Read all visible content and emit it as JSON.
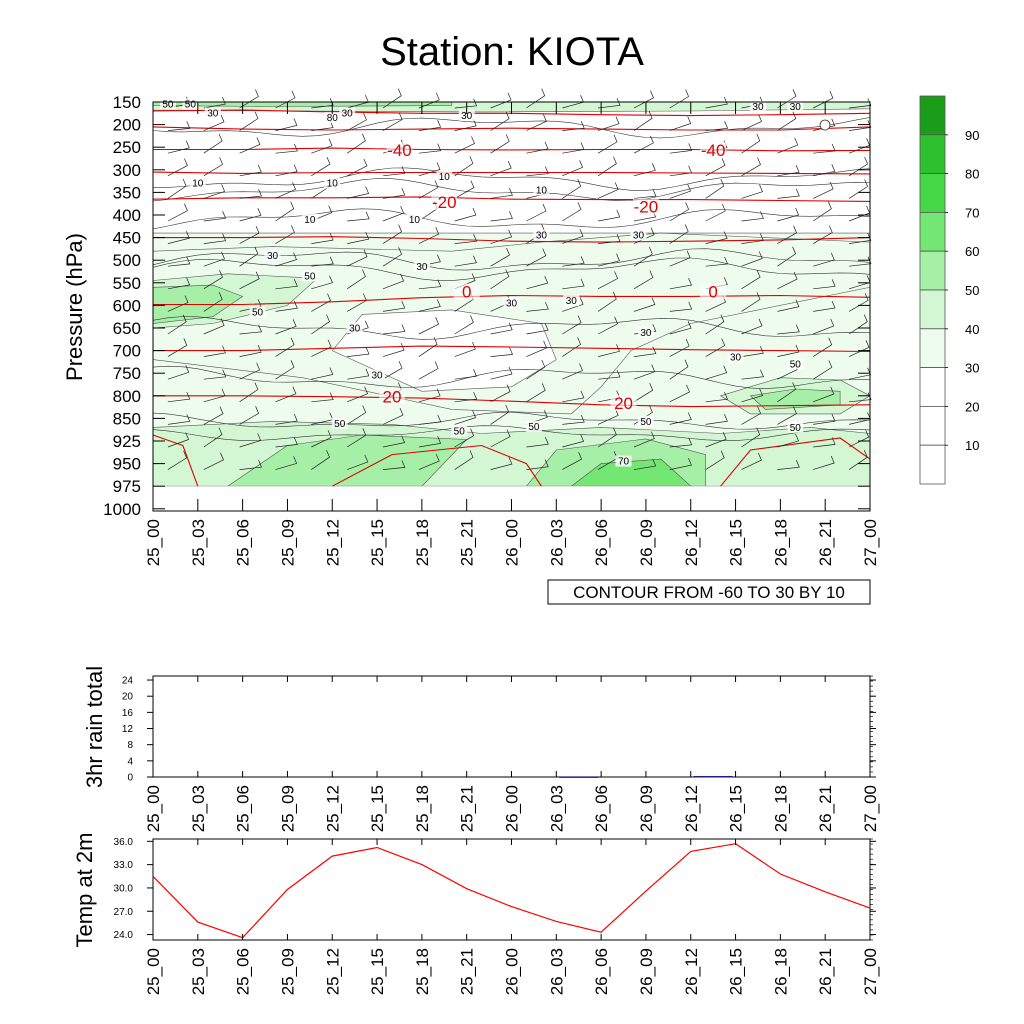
{
  "title": "Station: KIOTA",
  "chart_data": [
    {
      "type": "heatmap",
      "ylabel": "Pressure (hPa)",
      "y_ticks": [
        "150",
        "200",
        "250",
        "300",
        "350",
        "400",
        "450",
        "500",
        "550",
        "600",
        "650",
        "700",
        "750",
        "800",
        "850",
        "925",
        "950",
        "975",
        "1000"
      ],
      "x_ticks": [
        "25_00",
        "25_03",
        "25_06",
        "25_09",
        "25_12",
        "25_15",
        "25_18",
        "25_21",
        "26_00",
        "26_03",
        "26_06",
        "26_09",
        "26_12",
        "26_15",
        "26_18",
        "26_21",
        "27_00"
      ],
      "colorbar": {
        "labels": [
          "10",
          "20",
          "30",
          "40",
          "50",
          "60",
          "70",
          "80",
          "90"
        ],
        "colors": [
          "#ffffff",
          "#ffffff",
          "#ffffff",
          "#eefcee",
          "#d2f7d2",
          "#a6efa6",
          "#74e674",
          "#45d845",
          "#2ec12e",
          "#1a9e1a"
        ]
      },
      "info_label": "CONTOUR FROM -60 TO 30 BY 10",
      "humidity_contour_labels": [
        {
          "text": "50",
          "x": 1.0,
          "p": 160
        },
        {
          "text": "50",
          "x": 2.5,
          "p": 160
        },
        {
          "text": "30",
          "x": 4.0,
          "p": 180
        },
        {
          "text": "30",
          "x": 13.0,
          "p": 180
        },
        {
          "text": "80",
          "x": 12.0,
          "p": 190
        },
        {
          "text": "30",
          "x": 21.0,
          "p": 185
        },
        {
          "text": "30",
          "x": 40.5,
          "p": 165
        },
        {
          "text": "30",
          "x": 43.0,
          "p": 165
        },
        {
          "text": "10",
          "x": 3.0,
          "p": 335
        },
        {
          "text": "10",
          "x": 12.0,
          "p": 335
        },
        {
          "text": "10",
          "x": 19.5,
          "p": 320
        },
        {
          "text": "10",
          "x": 26.0,
          "p": 350
        },
        {
          "text": "10",
          "x": 10.5,
          "p": 415
        },
        {
          "text": "10",
          "x": 17.5,
          "p": 415
        },
        {
          "text": "30",
          "x": 26.0,
          "p": 450
        },
        {
          "text": "30",
          "x": 32.5,
          "p": 450
        },
        {
          "text": "30",
          "x": 8.0,
          "p": 495
        },
        {
          "text": "30",
          "x": 18.0,
          "p": 520
        },
        {
          "text": "50",
          "x": 10.5,
          "p": 540
        },
        {
          "text": "50",
          "x": 7.0,
          "p": 620
        },
        {
          "text": "30",
          "x": 24.0,
          "p": 600
        },
        {
          "text": "30",
          "x": 28.0,
          "p": 595
        },
        {
          "text": "30",
          "x": 13.5,
          "p": 655
        },
        {
          "text": "30",
          "x": 33.0,
          "p": 665
        },
        {
          "text": "30",
          "x": 39.0,
          "p": 720
        },
        {
          "text": "30",
          "x": 15.0,
          "p": 760
        },
        {
          "text": "50",
          "x": 43.0,
          "p": 735
        },
        {
          "text": "50",
          "x": 12.5,
          "p": 875
        },
        {
          "text": "50",
          "x": 20.5,
          "p": 900
        },
        {
          "text": "50",
          "x": 25.5,
          "p": 885
        },
        {
          "text": "50",
          "x": 33.0,
          "p": 868
        },
        {
          "text": "50",
          "x": 43.0,
          "p": 888
        },
        {
          "text": "70",
          "x": 31.5,
          "p": 950
        }
      ],
      "temperature_contour_labels": [
        {
          "text": "-40",
          "x": 16.5,
          "p": 265
        },
        {
          "text": "-40",
          "x": 37.5,
          "p": 265
        },
        {
          "text": "-20",
          "x": 19.5,
          "p": 380
        },
        {
          "text": "-20",
          "x": 33.0,
          "p": 390
        },
        {
          "text": "0",
          "x": 21.0,
          "p": 578
        },
        {
          "text": "0",
          "x": 37.5,
          "p": 578
        },
        {
          "text": "20",
          "x": 16.0,
          "p": 810
        },
        {
          "text": "20",
          "x": 31.5,
          "p": 825
        }
      ],
      "temperature_isotherms": [
        {
          "p": [
            170,
            168,
            172,
            175,
            175,
            178,
            180,
            178,
            175
          ]
        },
        {
          "p": [
            205,
            210,
            212,
            210,
            208,
            210,
            212,
            212,
            205
          ]
        },
        {
          "p": [
            255,
            255,
            252,
            255,
            256,
            255,
            255,
            258,
            257
          ]
        },
        {
          "p": [
            305,
            308,
            306,
            306,
            306,
            306,
            307,
            308,
            309
          ]
        },
        {
          "p": [
            365,
            362,
            362,
            360,
            365,
            366,
            366,
            368,
            370
          ]
        },
        {
          "p": [
            450,
            450,
            448,
            452,
            458,
            460,
            458,
            455,
            450
          ]
        },
        {
          "p": [
            598,
            598,
            592,
            583,
            578,
            580,
            580,
            578,
            582
          ]
        },
        {
          "p": [
            700,
            700,
            695,
            690,
            692,
            695,
            698,
            700,
            702
          ]
        },
        {
          "p": [
            800,
            800,
            802,
            805,
            812,
            820,
            824,
            822,
            820
          ]
        }
      ]
    },
    {
      "type": "bar",
      "ylabel": "3hr rain total",
      "y_ticks": [
        "0",
        "4",
        "8",
        "12",
        "16",
        "20",
        "24"
      ],
      "ylim": [
        0,
        25
      ],
      "x_ticks": [
        "25_00",
        "25_03",
        "25_06",
        "25_09",
        "25_12",
        "25_15",
        "25_18",
        "25_21",
        "26_00",
        "26_03",
        "26_06",
        "26_09",
        "26_12",
        "26_15",
        "26_18",
        "26_21",
        "27_00"
      ],
      "values": [
        0,
        0,
        0,
        0,
        0,
        0,
        0,
        0,
        0,
        0.15,
        0,
        0,
        0.25,
        0,
        0,
        0,
        0
      ]
    },
    {
      "type": "line",
      "ylabel": "Temp at 2m",
      "y_ticks": [
        "24.0",
        "27.0",
        "30.0",
        "33.0",
        "36.0"
      ],
      "ylim": [
        23.3,
        36.3
      ],
      "x_ticks": [
        "25_00",
        "25_03",
        "25_06",
        "25_09",
        "25_12",
        "25_15",
        "25_18",
        "25_21",
        "26_00",
        "26_03",
        "26_06",
        "26_09",
        "26_12",
        "26_15",
        "26_18",
        "26_21",
        "27_00"
      ],
      "values": [
        31.5,
        25.6,
        23.6,
        29.8,
        34.1,
        35.2,
        33.0,
        29.9,
        27.6,
        25.7,
        24.3,
        29.6,
        34.7,
        35.7,
        31.8,
        29.5,
        27.4
      ]
    }
  ]
}
